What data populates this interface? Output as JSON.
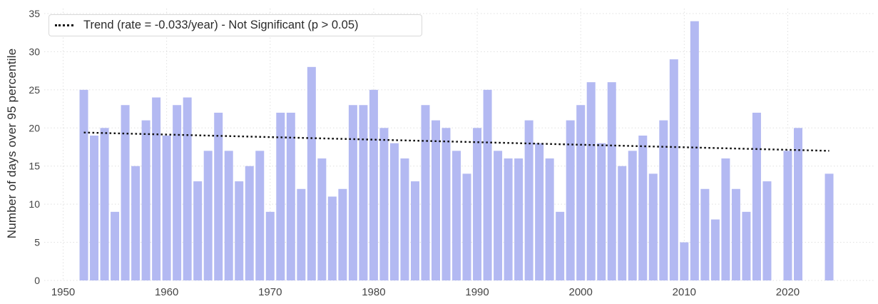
{
  "figure": {
    "background": "#ffffff",
    "bar_color": "#b3b9f2",
    "grid_color": "#e0e0e0",
    "trend_color": "#111111",
    "axis_text_color": "#444444",
    "ylabel": "Number of days over 95 percentile",
    "legend": {
      "label": "Trend (rate = -0.033/year) - Not Significant (p > 0.05)",
      "border_color": "#d9d9d9",
      "position": "top-left"
    }
  },
  "chart_data": {
    "type": "bar",
    "title": "",
    "xlabel": "",
    "ylabel": "Number of days over 95 percentile",
    "x_tick_labels": [
      1950,
      1960,
      1970,
      1980,
      1990,
      2000,
      2010,
      2020
    ],
    "y_tick_labels": [
      0,
      5,
      10,
      15,
      20,
      25,
      30,
      35
    ],
    "ylim": [
      0,
      35
    ],
    "xlim": [
      1948.2,
      2028.3
    ],
    "grid": true,
    "legend_position": "top-left",
    "series": [
      {
        "name": "Number of days over 95 percentile",
        "x": [
          1952,
          1953,
          1954,
          1955,
          1956,
          1957,
          1958,
          1959,
          1960,
          1961,
          1962,
          1963,
          1964,
          1965,
          1966,
          1967,
          1968,
          1969,
          1970,
          1971,
          1972,
          1973,
          1974,
          1975,
          1976,
          1977,
          1978,
          1979,
          1980,
          1981,
          1982,
          1983,
          1984,
          1985,
          1986,
          1987,
          1988,
          1989,
          1990,
          1991,
          1992,
          1993,
          1994,
          1995,
          1996,
          1997,
          1998,
          1999,
          2000,
          2001,
          2002,
          2003,
          2004,
          2005,
          2006,
          2007,
          2008,
          2009,
          2010,
          2011,
          2012,
          2013,
          2014,
          2015,
          2016,
          2017,
          2018,
          2020,
          2021,
          2024
        ],
        "y": [
          25,
          19,
          20,
          9,
          23,
          15,
          21,
          24,
          19,
          23,
          24,
          13,
          17,
          22,
          17,
          13,
          15,
          17,
          9,
          22,
          22,
          12,
          28,
          16,
          11,
          12,
          23,
          23,
          25,
          20,
          18,
          16,
          13,
          23,
          21,
          20,
          17,
          14,
          20,
          25,
          17,
          16,
          16,
          21,
          18,
          16,
          9,
          21,
          23,
          26,
          18,
          26,
          15,
          17,
          19,
          14,
          21,
          29,
          5,
          34,
          12,
          8,
          16,
          12,
          9,
          22,
          13,
          17,
          20,
          14
        ]
      }
    ],
    "trend": {
      "label": "Trend (rate = -0.033/year) - Not Significant (p > 0.05)",
      "rate_per_year": -0.033,
      "significant": false,
      "p_value": "p > 0.05",
      "x": [
        1952,
        2024
      ],
      "y": [
        19.4,
        17.0
      ],
      "style": "dotted"
    }
  }
}
